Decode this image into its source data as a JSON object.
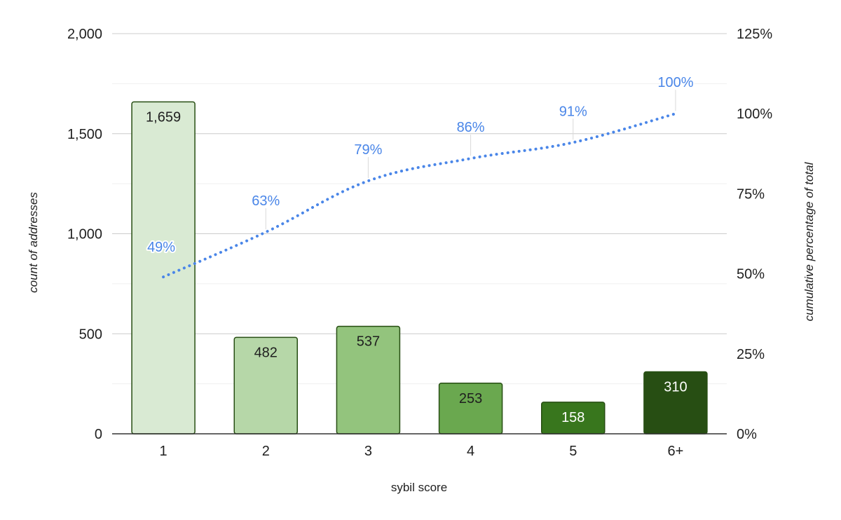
{
  "chart_data": {
    "type": "bar",
    "categories": [
      "1",
      "2",
      "3",
      "4",
      "5",
      "6+"
    ],
    "series": [
      {
        "type": "bar",
        "axis": "left",
        "values": [
          1659,
          482,
          537,
          253,
          158,
          310
        ],
        "data_labels": [
          "1,659",
          "482",
          "537",
          "253",
          "158",
          "310"
        ],
        "colors": [
          "#d9ead3",
          "#b6d7a8",
          "#93c47d",
          "#6aa84f",
          "#38761d",
          "#274e13"
        ],
        "border_color": "#274e13"
      },
      {
        "type": "line",
        "axis": "right",
        "style": "dotted",
        "color": "#4a86e8",
        "values": [
          49,
          63,
          79,
          86,
          91,
          100
        ],
        "data_labels": [
          "49%",
          "63%",
          "79%",
          "86%",
          "91%",
          "100%"
        ]
      }
    ],
    "xlabel": "sybil score",
    "ylabel": "count of addresses",
    "y2label": "cumulative percentage of total",
    "ylim": [
      0,
      2000
    ],
    "y2lim": [
      0,
      125
    ],
    "y_ticks": [
      {
        "value": 0,
        "label": "0"
      },
      {
        "value": 500,
        "label": "500"
      },
      {
        "value": 1000,
        "label": "1,000"
      },
      {
        "value": 1500,
        "label": "1,500"
      },
      {
        "value": 2000,
        "label": "2,000"
      }
    ],
    "y2_ticks": [
      {
        "value": 0,
        "label": "0%"
      },
      {
        "value": 25,
        "label": "25%"
      },
      {
        "value": 50,
        "label": "50%"
      },
      {
        "value": 75,
        "label": "75%"
      },
      {
        "value": 100,
        "label": "100%"
      },
      {
        "value": 125,
        "label": "125%"
      }
    ],
    "grid": true,
    "legend": "none"
  }
}
